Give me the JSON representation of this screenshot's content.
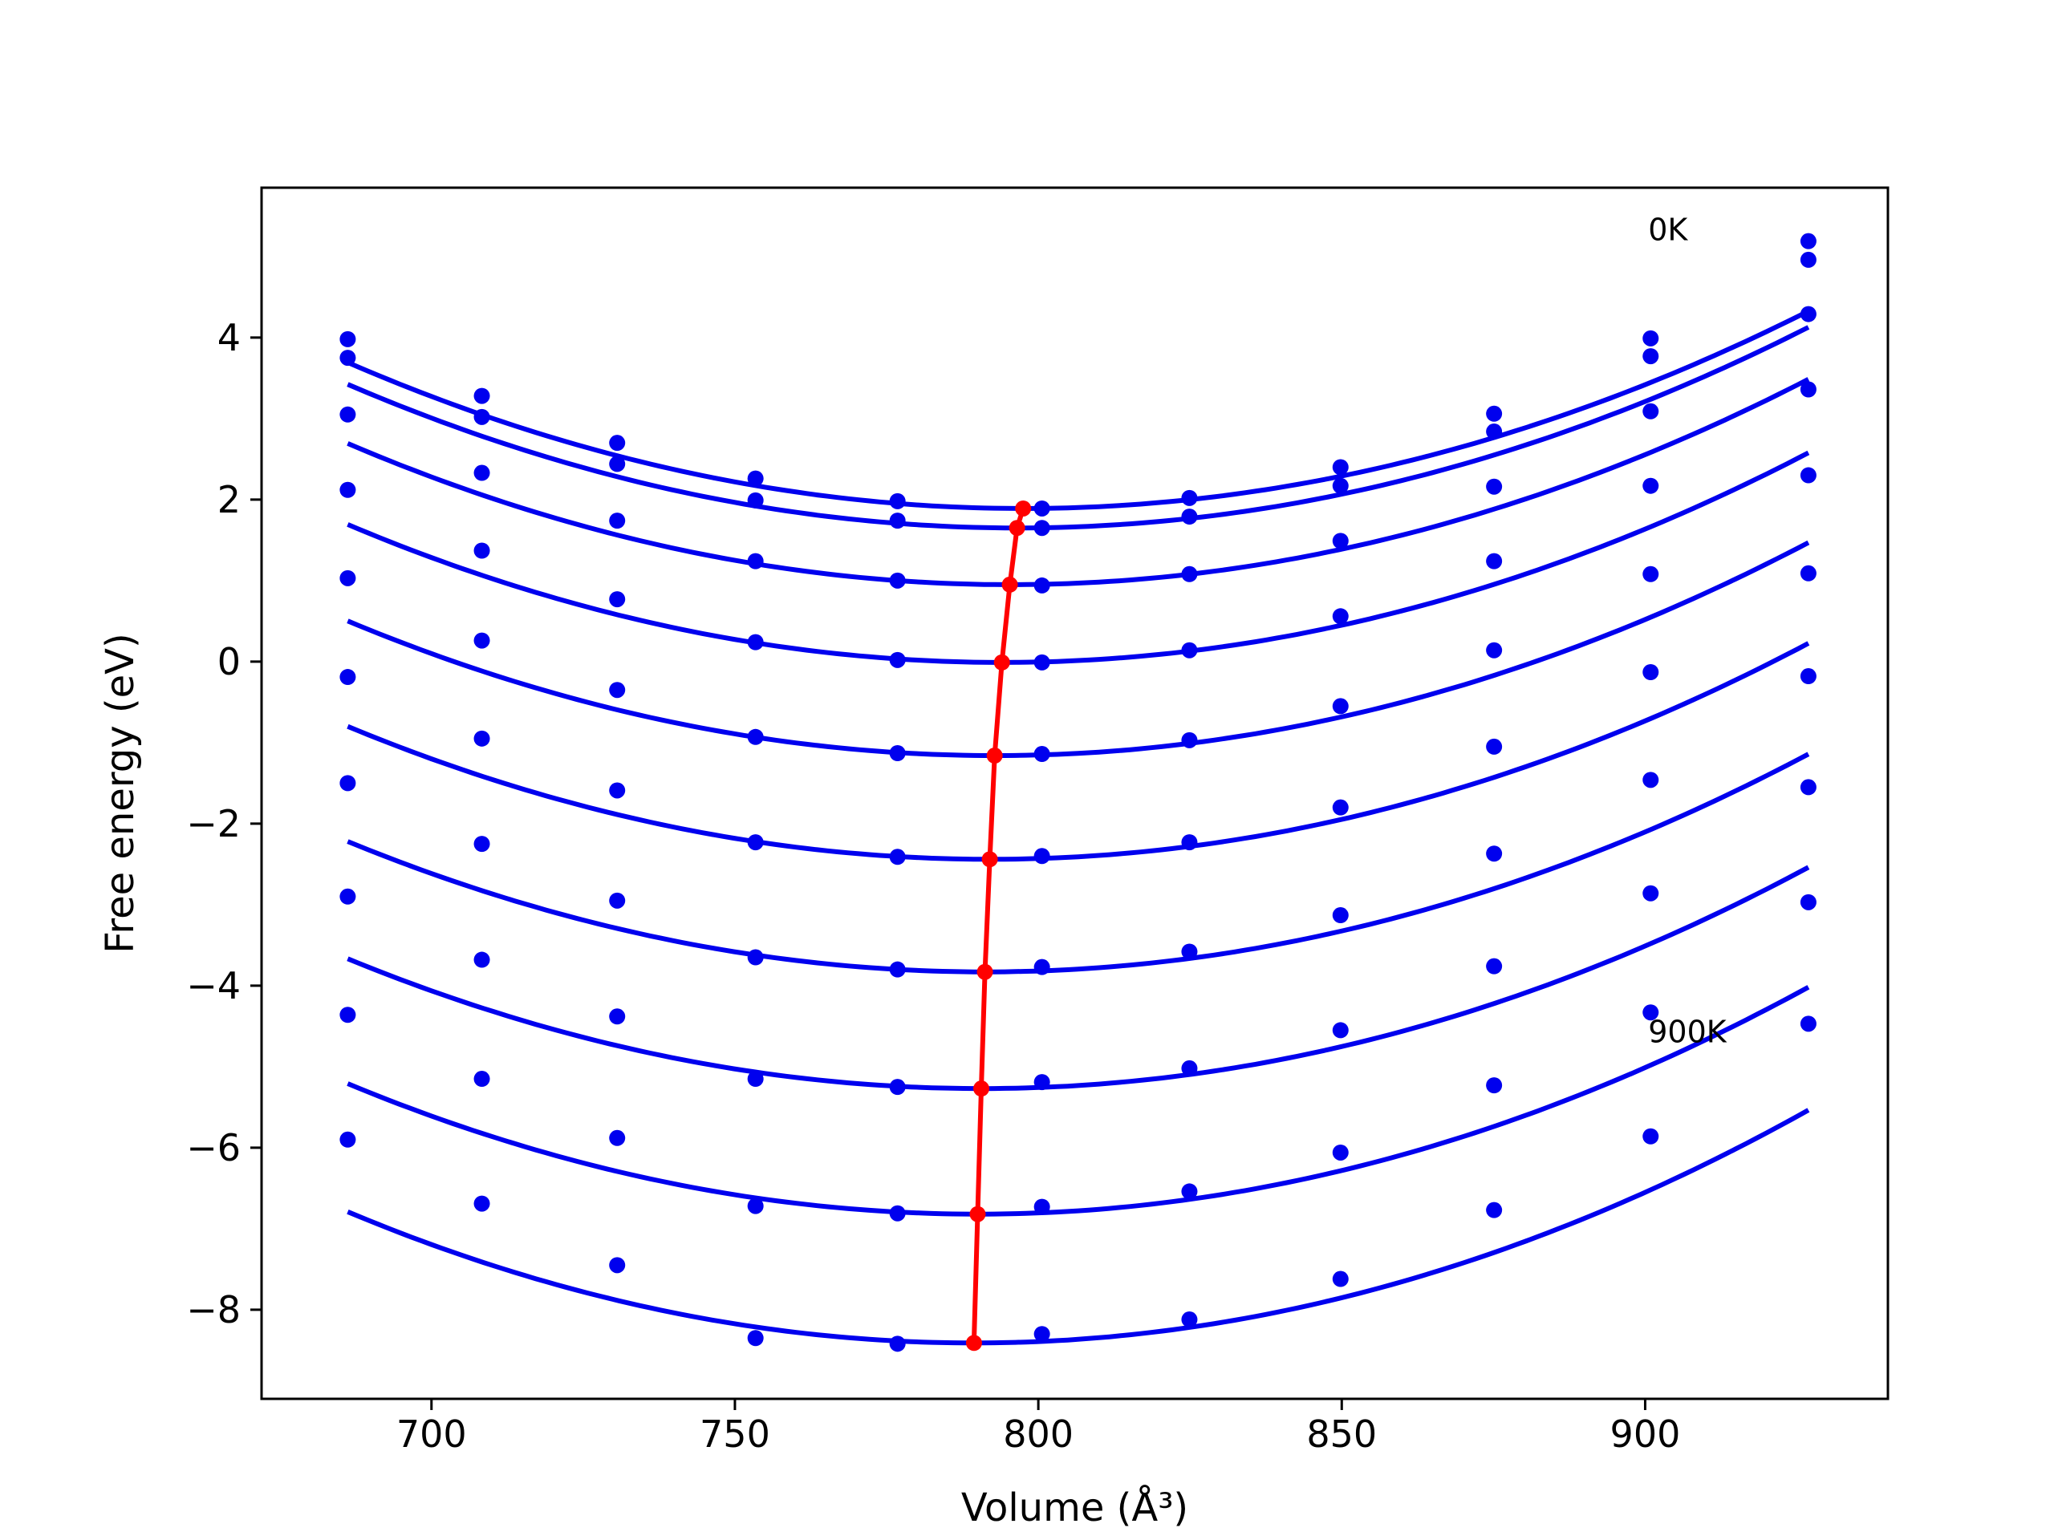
{
  "chart_data": {
    "type": "line",
    "title": "",
    "xlabel": "Volume (Å³)",
    "ylabel": "Free energy (eV)",
    "xlim": [
      672,
      940
    ],
    "ylim": [
      -9.1,
      5.85
    ],
    "xticks": [
      700,
      750,
      800,
      850,
      900
    ],
    "xtick_labels": [
      "700",
      "750",
      "800",
      "850",
      "900"
    ],
    "yticks": [
      4,
      2,
      0,
      -2,
      -4,
      -6,
      -8
    ],
    "ytick_labels": [
      "4",
      "2",
      "0",
      "−2",
      "−4",
      "−6",
      "−8"
    ],
    "grid": false,
    "legend": "none",
    "colors": {
      "curves": "#0000ee",
      "minimum": "#ff0000"
    },
    "volumes": [
      686.2,
      708.3,
      730.6,
      753.4,
      776.8,
      800.6,
      824.9,
      849.8,
      875.1,
      900.9,
      926.9
    ],
    "series": [
      {
        "values": [
          3.98,
          3.28,
          2.7,
          2.26,
          1.98,
          1.89,
          2.02,
          2.4,
          3.06,
          3.99,
          5.19
        ],
        "fit": {
          "a": 0.0001455,
          "vmin": 797.5,
          "emin": 1.89
        }
      },
      {
        "values": [
          3.75,
          3.02,
          2.44,
          1.99,
          1.74,
          1.65,
          1.79,
          2.17,
          2.84,
          3.77,
          4.96
        ],
        "fit": {
          "a": 0.0001457,
          "vmin": 796.5,
          "emin": 1.65
        }
      },
      {
        "values": [
          3.05,
          2.33,
          1.74,
          1.24,
          1.0,
          0.94,
          1.08,
          1.49,
          2.16,
          3.09,
          4.29
        ],
        "fit": {
          "a": 0.0001464,
          "vmin": 795.3,
          "emin": 0.95
        }
      },
      {
        "values": [
          2.12,
          1.37,
          0.77,
          0.24,
          0.02,
          -0.01,
          0.14,
          0.56,
          1.24,
          2.17,
          3.36
        ],
        "fit": {
          "a": 0.0001465,
          "vmin": 794.0,
          "emin": -0.01
        }
      },
      {
        "values": [
          1.03,
          0.26,
          -0.35,
          -0.93,
          -1.13,
          -1.14,
          -0.97,
          -0.55,
          0.14,
          1.08,
          2.3
        ],
        "fit": {
          "a": 0.0001462,
          "vmin": 792.8,
          "emin": -1.16
        }
      },
      {
        "values": [
          -0.19,
          -0.95,
          -1.59,
          -2.23,
          -2.41,
          -2.4,
          -2.23,
          -1.8,
          -1.05,
          -0.13,
          1.09
        ],
        "fit": {
          "a": 0.0001465,
          "vmin": 792.0,
          "emin": -2.44
        }
      },
      {
        "values": [
          -1.5,
          -2.25,
          -2.95,
          -3.65,
          -3.8,
          -3.77,
          -3.58,
          -3.13,
          -2.37,
          -1.46,
          -0.18
        ],
        "fit": {
          "a": 0.000146,
          "vmin": 791.2,
          "emin": -3.83
        }
      },
      {
        "values": [
          -2.9,
          -3.68,
          -4.38,
          -5.15,
          -5.25,
          -5.19,
          -5.02,
          -4.55,
          -3.76,
          -2.86,
          -1.55
        ],
        "fit": {
          "a": 0.000147,
          "vmin": 790.6,
          "emin": -5.27
        }
      },
      {
        "values": [
          -4.36,
          -5.15,
          -5.88,
          -6.72,
          -6.81,
          -6.73,
          -6.54,
          -6.06,
          -5.23,
          -4.33,
          -2.97
        ],
        "fit": {
          "a": 0.0001495,
          "vmin": 790.0,
          "emin": -6.82
        }
      },
      {
        "values": [
          -5.9,
          -6.69,
          -7.45,
          -8.35,
          -8.42,
          -8.3,
          -8.12,
          -7.62,
          -6.77,
          -5.86,
          -4.47
        ],
        "fit": {
          "a": 0.000152,
          "vmin": 789.4,
          "emin": -8.41
        }
      }
    ],
    "minimum_curve": {
      "x": [
        797.5,
        796.5,
        795.3,
        794.0,
        792.8,
        792.0,
        791.2,
        790.6,
        790.0,
        789.4
      ],
      "y": [
        1.89,
        1.65,
        0.95,
        -0.01,
        -1.16,
        -2.44,
        -3.83,
        -5.27,
        -6.82,
        -8.41
      ]
    },
    "annotations": [
      {
        "text": "0K",
        "x": 900.5,
        "y": 5.2
      },
      {
        "text": "900K",
        "x": 900.5,
        "y": -4.7
      }
    ]
  }
}
